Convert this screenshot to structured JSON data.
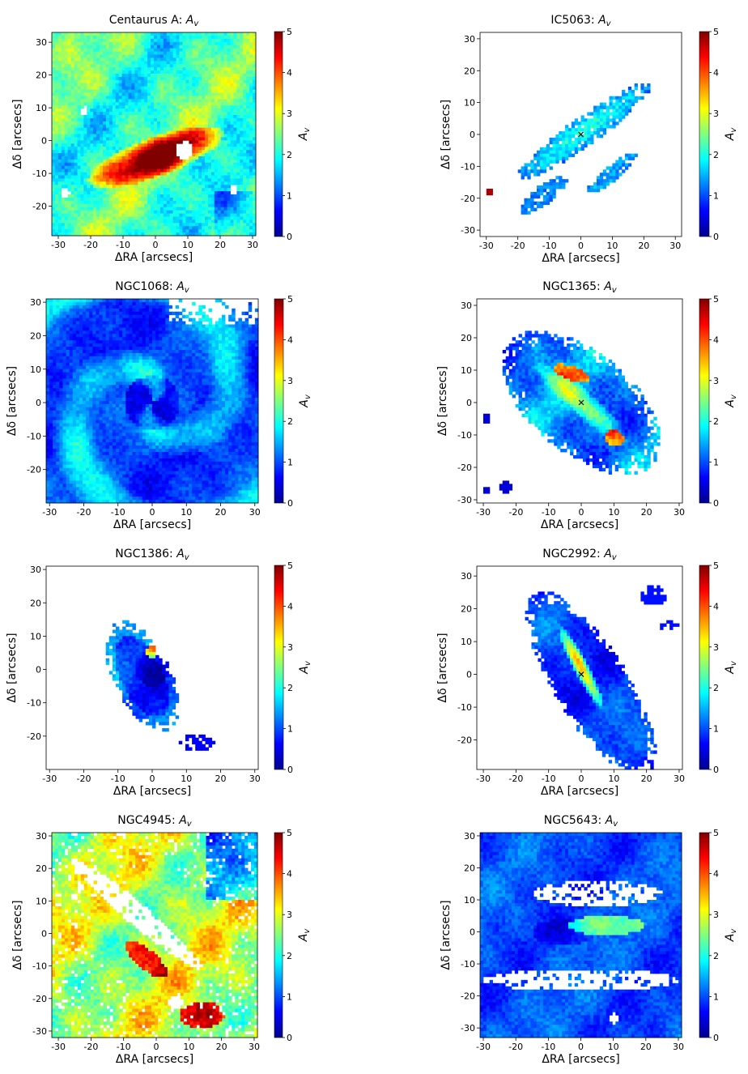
{
  "figure": {
    "colorbar_ticks": [
      "0",
      "1",
      "2",
      "3",
      "4",
      "5"
    ],
    "colorbar_label": "A_v",
    "xlabel": "ΔRA [arcsecs]",
    "ylabel": "Δδ [arcsecs]",
    "colormap": [
      "#00008f",
      "#0000ff",
      "#0080ff",
      "#00ffff",
      "#80ff80",
      "#ffff00",
      "#ff8000",
      "#ff0000",
      "#800000"
    ],
    "nan_color": "#ffffff"
  },
  "chart_data": [
    {
      "type": "heatmap",
      "galaxy": "Centaurus A",
      "title": "Centaurus A: A_v",
      "xlabel": "ΔRA [arcsecs]",
      "ylabel": "Δδ [arcsecs]",
      "xlim": [
        -32,
        31
      ],
      "ylim": [
        -29,
        33
      ],
      "xticks": [
        -30,
        -20,
        -10,
        0,
        10,
        20,
        30
      ],
      "yticks": [
        -20,
        -10,
        0,
        10,
        20,
        30
      ],
      "clim": [
        0,
        5
      ],
      "colorbar_label": "A_v",
      "colorbar_ticks": [
        0,
        1,
        2,
        3,
        4,
        5
      ],
      "nucleus_marker": false
    },
    {
      "type": "heatmap",
      "galaxy": "IC5063",
      "title": "IC5063: A_v",
      "xlabel": "ΔRA [arcsecs]",
      "ylabel": "Δδ [arcsecs]",
      "xlim": [
        -32,
        32
      ],
      "ylim": [
        -32,
        32
      ],
      "xticks": [
        -30,
        -20,
        -10,
        0,
        10,
        20,
        30
      ],
      "yticks": [
        -30,
        -20,
        -10,
        0,
        10,
        20,
        30
      ],
      "clim": [
        0,
        5
      ],
      "colorbar_label": "A_v",
      "colorbar_ticks": [
        0,
        1,
        2,
        3,
        4,
        5
      ],
      "nucleus_marker": true
    },
    {
      "type": "heatmap",
      "galaxy": "NGC1068",
      "title": "NGC1068: A_v",
      "xlabel": "ΔRA [arcsecs]",
      "ylabel": "Δδ [arcsecs]",
      "xlim": [
        -31,
        31
      ],
      "ylim": [
        -30,
        31
      ],
      "xticks": [
        -30,
        -20,
        -10,
        0,
        10,
        20,
        30
      ],
      "yticks": [
        -20,
        -10,
        0,
        10,
        20,
        30
      ],
      "clim": [
        0,
        5
      ],
      "colorbar_label": "A_v",
      "colorbar_ticks": [
        0,
        1,
        2,
        3,
        4,
        5
      ],
      "nucleus_marker": false
    },
    {
      "type": "heatmap",
      "galaxy": "NGC1365",
      "title": "NGC1365: A_v",
      "xlabel": "ΔRA [arcsecs]",
      "ylabel": "Δδ [arcsecs]",
      "xlim": [
        -32,
        31
      ],
      "ylim": [
        -31,
        32
      ],
      "xticks": [
        -30,
        -20,
        -10,
        0,
        10,
        20,
        30
      ],
      "yticks": [
        -30,
        -20,
        -10,
        0,
        10,
        20,
        30
      ],
      "clim": [
        0,
        5
      ],
      "colorbar_label": "A_v",
      "colorbar_ticks": [
        0,
        1,
        2,
        3,
        4,
        5
      ],
      "nucleus_marker": true
    },
    {
      "type": "heatmap",
      "galaxy": "NGC1386",
      "title": "NGC1386: A_v",
      "xlabel": "ΔRA [arcsecs]",
      "ylabel": "Δδ [arcsecs]",
      "xlim": [
        -31,
        31
      ],
      "ylim": [
        -30,
        31
      ],
      "xticks": [
        -30,
        -20,
        -10,
        0,
        10,
        20,
        30
      ],
      "yticks": [
        -20,
        -10,
        0,
        10,
        20,
        30
      ],
      "clim": [
        0,
        5
      ],
      "colorbar_label": "A_v",
      "colorbar_ticks": [
        0,
        1,
        2,
        3,
        4,
        5
      ],
      "nucleus_marker": false
    },
    {
      "type": "heatmap",
      "galaxy": "NGC2992",
      "title": "NGC2992: A_v",
      "xlabel": "ΔRA [arcsecs]",
      "ylabel": "Δδ [arcsecs]",
      "xlim": [
        -32,
        31
      ],
      "ylim": [
        -29,
        33
      ],
      "xticks": [
        -30,
        -20,
        -10,
        0,
        10,
        20,
        30
      ],
      "yticks": [
        -20,
        -10,
        0,
        10,
        20,
        30
      ],
      "clim": [
        0,
        5
      ],
      "colorbar_label": "A_v",
      "colorbar_ticks": [
        0,
        1,
        2,
        3,
        4,
        5
      ],
      "nucleus_marker": true
    },
    {
      "type": "heatmap",
      "galaxy": "NGC4945",
      "title": "NGC4945: A_v",
      "xlabel": "ΔRA [arcsecs]",
      "ylabel": "Δδ [arcsecs]",
      "xlim": [
        -32,
        31
      ],
      "ylim": [
        -32,
        31
      ],
      "xticks": [
        -30,
        -20,
        -10,
        0,
        10,
        20,
        30
      ],
      "yticks": [
        -30,
        -20,
        -10,
        0,
        10,
        20,
        30
      ],
      "clim": [
        0,
        5
      ],
      "colorbar_label": "A_v",
      "colorbar_ticks": [
        0,
        1,
        2,
        3,
        4,
        5
      ],
      "nucleus_marker": false
    },
    {
      "type": "heatmap",
      "galaxy": "NGC5643",
      "title": "NGC5643: A_v",
      "xlabel": "ΔRA [arcsecs]",
      "ylabel": "Δδ [arcsecs]",
      "xlim": [
        -31,
        31
      ],
      "ylim": [
        -33,
        31
      ],
      "xticks": [
        -30,
        -20,
        -10,
        0,
        10,
        20,
        30
      ],
      "yticks": [
        -30,
        -20,
        -10,
        0,
        10,
        20,
        30
      ],
      "clim": [
        0,
        5
      ],
      "colorbar_label": "A_v",
      "colorbar_ticks": [
        0,
        1,
        2,
        3,
        4,
        5
      ],
      "nucleus_marker": false
    }
  ]
}
